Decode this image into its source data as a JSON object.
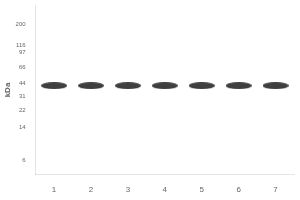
{
  "chart_data": {
    "type": "scatter",
    "ylabel": "kDa",
    "categories": [
      "1",
      "2",
      "3",
      "4",
      "5",
      "6",
      "7"
    ],
    "values": [
      41,
      41,
      41,
      41,
      41,
      41,
      41
    ],
    "color": "#2a2a2a",
    "log": "y",
    "ylim": [
      4.2,
      320
    ],
    "yticks": [
      200,
      116,
      97,
      66,
      44,
      31,
      22,
      14,
      6
    ],
    "grid": false
  }
}
